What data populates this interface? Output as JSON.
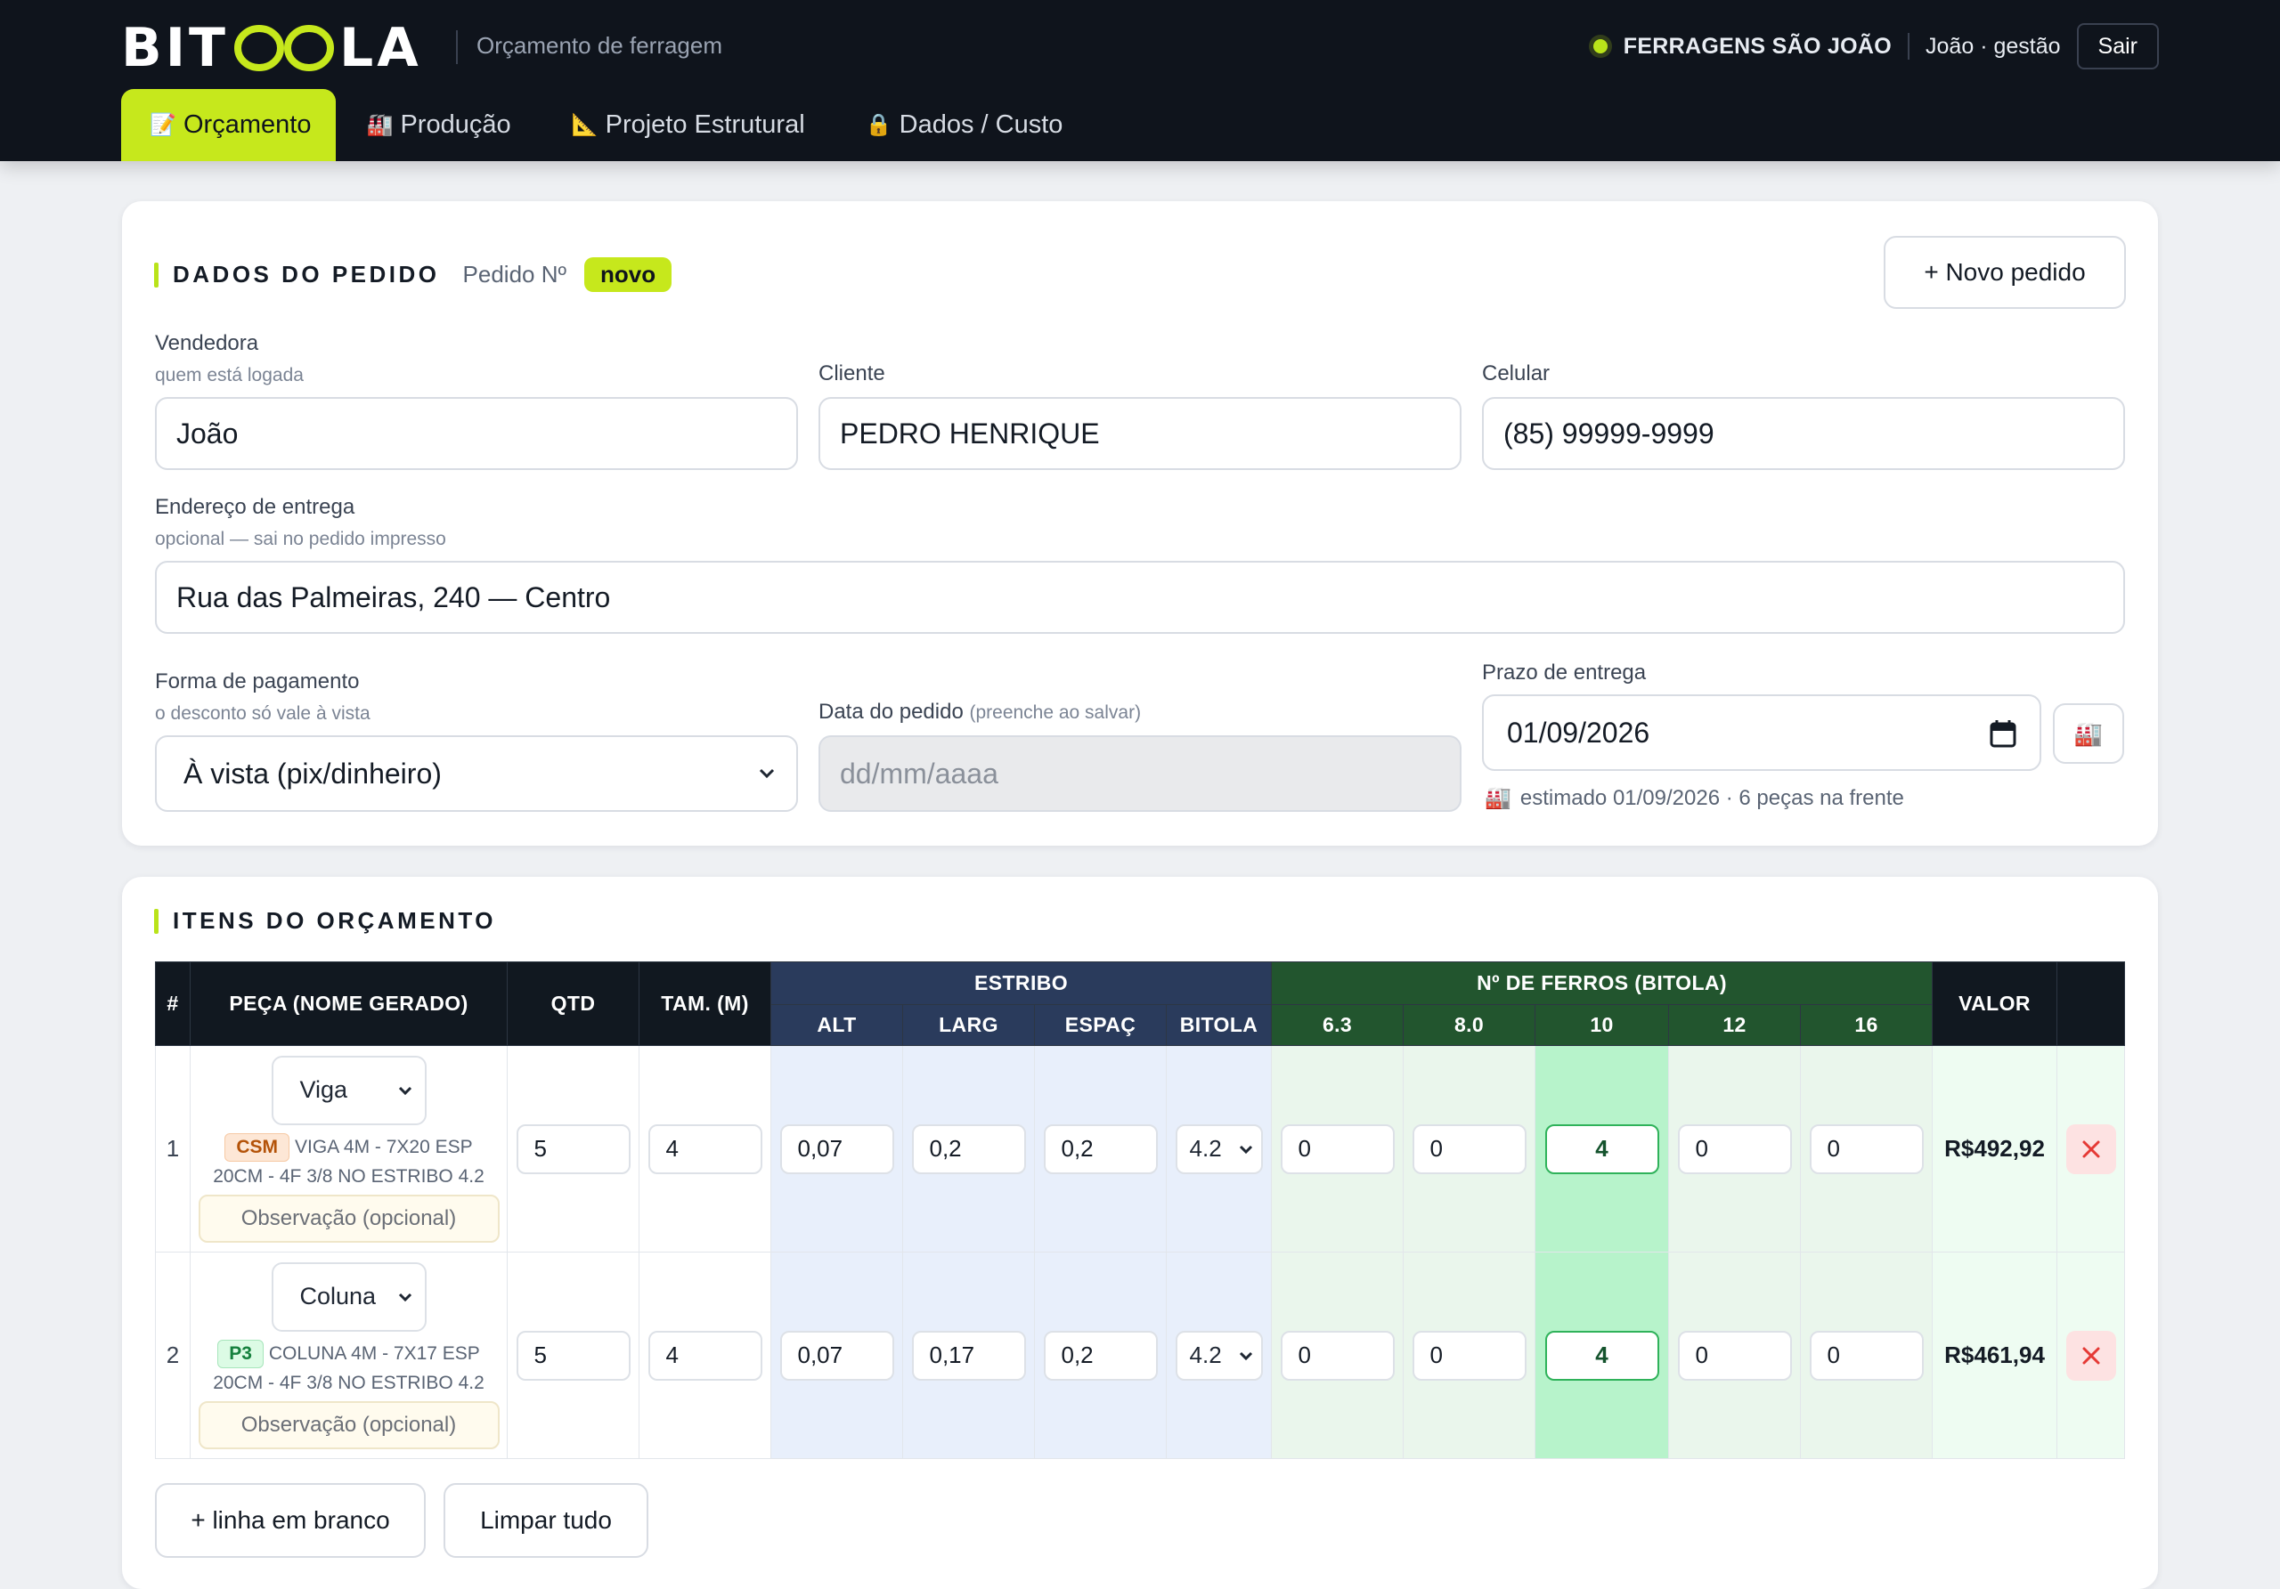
{
  "header": {
    "brand": "BITOOLA",
    "brand_left": "BIT",
    "brand_right": "LA",
    "subtitle": "Orçamento de ferragem",
    "company": "FERRAGENS SÃO JOÃO",
    "user": "João · gestão",
    "logout_label": "Sair",
    "accent_color": "#c6e81c"
  },
  "tabs": [
    {
      "label": "Orçamento",
      "icon": "memo-icon",
      "glyph": "📝",
      "active": true
    },
    {
      "label": "Produção",
      "icon": "factory-icon",
      "glyph": "🏭",
      "active": false
    },
    {
      "label": "Projeto Estrutural",
      "icon": "triangle-ruler-icon",
      "glyph": "📐",
      "active": false
    },
    {
      "label": "Dados / Custo",
      "icon": "lock-icon",
      "glyph": "🔒",
      "active": false
    }
  ],
  "order": {
    "section_title": "DADOS DO PEDIDO",
    "order_number_label": "Pedido Nº",
    "order_number_value": "novo",
    "new_order_label": "+ Novo pedido",
    "seller": {
      "label": "Vendedora",
      "hint": "quem está logada",
      "value": "João"
    },
    "client": {
      "label": "Cliente",
      "value": "PEDRO HENRIQUE"
    },
    "phone": {
      "label": "Celular",
      "value": "(85) 99999-9999"
    },
    "address": {
      "label": "Endereço de entrega",
      "hint": "opcional — sai no pedido impresso",
      "value": "Rua das Palmeiras, 240 — Centro"
    },
    "payment": {
      "label": "Forma de pagamento",
      "hint": "o desconto só vale à vista",
      "value": "À vista (pix/dinheiro)"
    },
    "order_date": {
      "label": "Data do pedido",
      "hint": "(preenche ao salvar)",
      "placeholder": "dd/mm/aaaa"
    },
    "deadline": {
      "label": "Prazo de entrega",
      "value": "01/09/2026",
      "estimate": "estimado 01/09/2026 · 6 peças na frente"
    }
  },
  "items": {
    "section_title": "ITENS DO ORÇAMENTO",
    "headers": {
      "index": "#",
      "piece": "PEÇA (NOME GERADO)",
      "qty": "QTD",
      "size": "TAM. (M)",
      "estribo": "ESTRIBO",
      "estribo_cols": [
        "ALT",
        "LARG",
        "ESPAÇ",
        "BITOLA"
      ],
      "ferros": "Nº DE FERROS (BITOLA)",
      "ferros_cols": [
        "6.3",
        "8.0",
        "10",
        "12",
        "16"
      ],
      "value": "VALOR"
    },
    "rows": [
      {
        "index": "1",
        "type": "Viga",
        "tag": "CSM",
        "description": "VIGA 4M - 7X20 ESP 20CM - 4F 3/8 NO ESTRIBO 4.2",
        "obs_placeholder": "Observação (opcional)",
        "qty": "5",
        "size": "4",
        "alt": "0,07",
        "larg": "0,2",
        "espac": "0,2",
        "bitola": "4.2",
        "ferros": [
          "0",
          "0",
          "4",
          "0",
          "0"
        ],
        "value": "R$492,92"
      },
      {
        "index": "2",
        "type": "Coluna",
        "tag": "P3",
        "description": "COLUNA 4M - 7X17 ESP 20CM - 4F 3/8 NO ESTRIBO 4.2",
        "obs_placeholder": "Observação (opcional)",
        "qty": "5",
        "size": "4",
        "alt": "0,07",
        "larg": "0,17",
        "espac": "0,2",
        "bitola": "4.2",
        "ferros": [
          "0",
          "0",
          "4",
          "0",
          "0"
        ],
        "value": "R$461,94"
      }
    ],
    "add_blank_label": "+ linha em branco",
    "clear_all_label": "Limpar tudo"
  }
}
